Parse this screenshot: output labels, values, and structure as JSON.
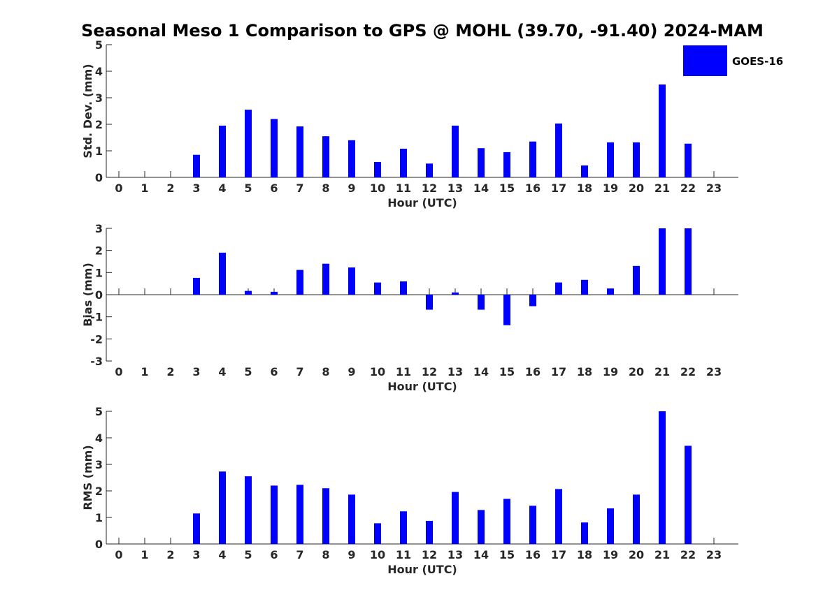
{
  "title": "Seasonal Meso 1 Comparison to GPS @ MOHL (39.70, -91.40) 2024-MAM",
  "legend": {
    "label": "GOES-16",
    "color": "#0000ff"
  },
  "chart_data": [
    {
      "type": "bar",
      "name": "std-dev",
      "title": "Seasonal Meso 1 Comparison to GPS @ MOHL (39.70, -91.40) 2024-MAM",
      "xlabel": "Hour (UTC)",
      "ylabel": "Std. Dev. (mm)",
      "ylim": [
        0,
        5
      ],
      "yticks": [
        "0",
        "1",
        "2",
        "3",
        "4",
        "5"
      ],
      "categories": [
        "0",
        "1",
        "2",
        "3",
        "4",
        "5",
        "6",
        "7",
        "8",
        "9",
        "10",
        "11",
        "12",
        "13",
        "14",
        "15",
        "16",
        "17",
        "18",
        "19",
        "20",
        "21",
        "22",
        "23"
      ],
      "series": [
        {
          "name": "GOES-16",
          "color": "#0000ff",
          "values": [
            null,
            null,
            null,
            0.85,
            1.95,
            2.55,
            2.2,
            1.92,
            1.55,
            1.4,
            0.58,
            1.08,
            0.52,
            1.95,
            1.1,
            0.95,
            1.35,
            2.03,
            0.45,
            1.32,
            1.32,
            3.5,
            1.27,
            null
          ]
        }
      ]
    },
    {
      "type": "bar",
      "name": "bias",
      "xlabel": "Hour (UTC)",
      "ylabel": "Bias (mm)",
      "ylim": [
        -3,
        3
      ],
      "yticks": [
        "-3",
        "-2",
        "-1",
        "0",
        "1",
        "2",
        "3"
      ],
      "categories": [
        "0",
        "1",
        "2",
        "3",
        "4",
        "5",
        "6",
        "7",
        "8",
        "9",
        "10",
        "11",
        "12",
        "13",
        "14",
        "15",
        "16",
        "17",
        "18",
        "19",
        "20",
        "21",
        "22",
        "23"
      ],
      "series": [
        {
          "name": "GOES-16",
          "color": "#0000ff",
          "values": [
            null,
            null,
            null,
            0.76,
            1.9,
            0.17,
            0.13,
            1.12,
            1.4,
            1.23,
            0.55,
            0.6,
            -0.68,
            0.1,
            -0.68,
            -1.38,
            -0.52,
            0.55,
            0.67,
            0.28,
            1.3,
            3.0,
            3.0,
            null
          ]
        }
      ]
    },
    {
      "type": "bar",
      "name": "rms",
      "xlabel": "Hour (UTC)",
      "ylabel": "RMS (mm)",
      "ylim": [
        0,
        5
      ],
      "yticks": [
        "0",
        "1",
        "2",
        "3",
        "4",
        "5"
      ],
      "categories": [
        "0",
        "1",
        "2",
        "3",
        "4",
        "5",
        "6",
        "7",
        "8",
        "9",
        "10",
        "11",
        "12",
        "13",
        "14",
        "15",
        "16",
        "17",
        "18",
        "19",
        "20",
        "21",
        "22",
        "23"
      ],
      "series": [
        {
          "name": "GOES-16",
          "color": "#0000ff",
          "values": [
            null,
            null,
            null,
            1.15,
            2.73,
            2.55,
            2.2,
            2.23,
            2.1,
            1.86,
            0.78,
            1.23,
            0.87,
            1.96,
            1.28,
            1.7,
            1.44,
            2.07,
            0.81,
            1.34,
            1.86,
            5.0,
            3.7,
            null
          ]
        }
      ]
    }
  ]
}
